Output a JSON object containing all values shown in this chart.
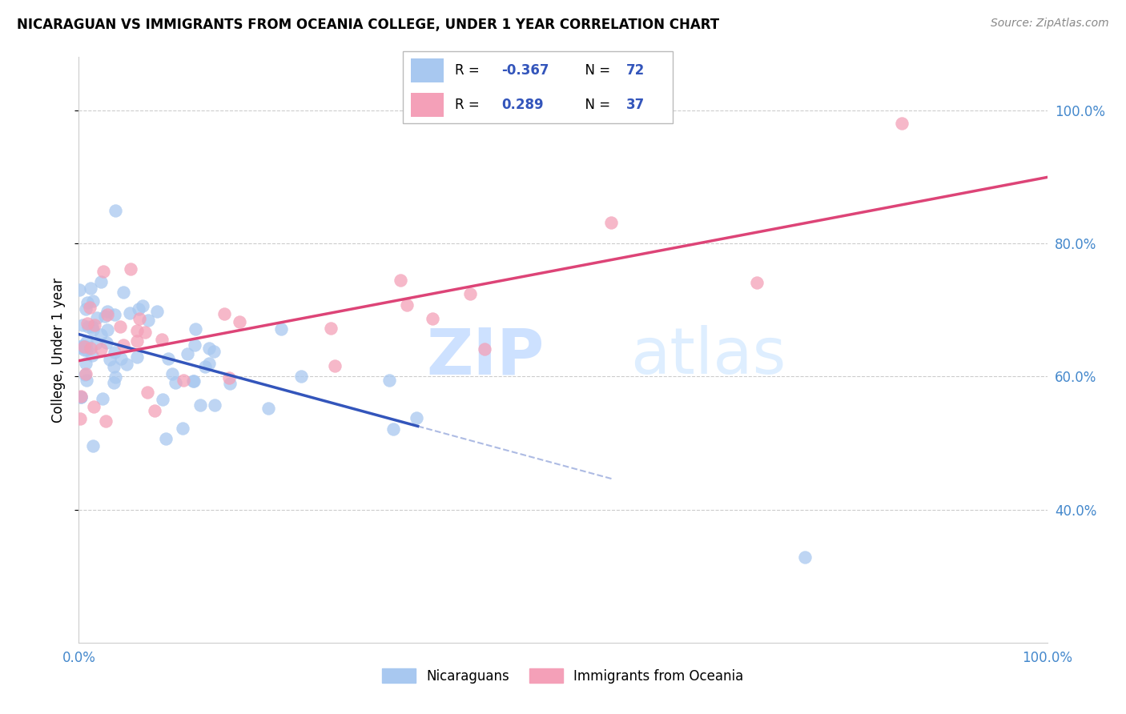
{
  "title": "NICARAGUAN VS IMMIGRANTS FROM OCEANIA COLLEGE, UNDER 1 YEAR CORRELATION CHART",
  "source": "Source: ZipAtlas.com",
  "ylabel": "College, Under 1 year",
  "y_tick_labels": [
    "40.0%",
    "60.0%",
    "80.0%",
    "100.0%"
  ],
  "y_ticks": [
    40,
    60,
    80,
    100
  ],
  "legend_label1": "Nicaraguans",
  "legend_label2": "Immigrants from Oceania",
  "R1": -0.367,
  "N1": 72,
  "R2": 0.289,
  "N2": 37,
  "color_blue": "#A8C8F0",
  "color_pink": "#F4A0B8",
  "line_color_blue": "#3355BB",
  "line_color_pink": "#DD4477",
  "legend_value_color": "#3355BB",
  "grid_color": "#CCCCCC",
  "tick_color": "#4488CC",
  "watermark_zip_color": "#C8DEFF",
  "watermark_atlas_color": "#D0E8FF"
}
